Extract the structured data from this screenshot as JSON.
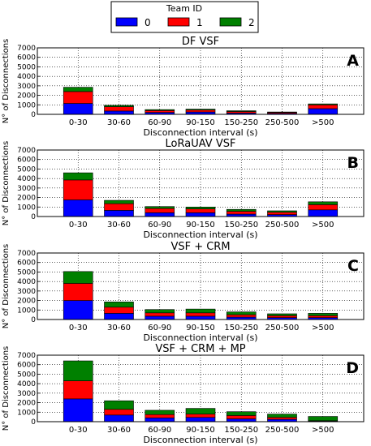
{
  "legend": {
    "title": "Team ID",
    "entries": [
      {
        "label": "0",
        "color": "#0000ff"
      },
      {
        "label": "1",
        "color": "#ff0000"
      },
      {
        "label": "2",
        "color": "#008000"
      }
    ]
  },
  "chart_data": [
    {
      "type": "bar",
      "stacked": true,
      "panel_letter": "A",
      "title": "DF VSF",
      "xlabel": "Disconnection interval (s)",
      "ylabel": "N° of Disconnections",
      "ylim": [
        0,
        7000
      ],
      "yticks": [
        "0",
        "1000",
        "2000",
        "3000",
        "4000",
        "5000",
        "6000",
        "7000"
      ],
      "grid": true,
      "categories": [
        "0-30",
        "30-60",
        "60-90",
        "90-150",
        "150-250",
        "250-500",
        ">500"
      ],
      "series": [
        {
          "name": "0",
          "values": [
            1150,
            350,
            200,
            250,
            130,
            100,
            600
          ]
        },
        {
          "name": "1",
          "values": [
            1250,
            450,
            200,
            200,
            170,
            100,
            400
          ]
        },
        {
          "name": "2",
          "values": [
            450,
            150,
            100,
            100,
            80,
            50,
            100
          ]
        }
      ]
    },
    {
      "type": "bar",
      "stacked": true,
      "panel_letter": "B",
      "title": "LoRaUAV VSF",
      "xlabel": "Disconnection interval (s)",
      "ylabel": "N° of Disconnections",
      "ylim": [
        0,
        7000
      ],
      "yticks": [
        "0",
        "1000",
        "2000",
        "3000",
        "4000",
        "5000",
        "6000",
        "7000"
      ],
      "grid": true,
      "categories": [
        "0-30",
        "30-60",
        "60-90",
        "90-150",
        "150-250",
        "250-500",
        ">500"
      ],
      "series": [
        {
          "name": "0",
          "values": [
            1750,
            650,
            400,
            400,
            250,
            200,
            700
          ]
        },
        {
          "name": "1",
          "values": [
            2100,
            700,
            450,
            400,
            300,
            250,
            550
          ]
        },
        {
          "name": "2",
          "values": [
            750,
            350,
            200,
            200,
            200,
            150,
            300
          ]
        }
      ]
    },
    {
      "type": "bar",
      "stacked": true,
      "panel_letter": "C",
      "title": "VSF + CRM",
      "xlabel": "Disconnection interval (s)",
      "ylabel": "N° of Disconnections",
      "ylim": [
        0,
        7000
      ],
      "yticks": [
        "0",
        "1000",
        "2000",
        "3000",
        "4000",
        "5000",
        "6000",
        "7000"
      ],
      "grid": true,
      "categories": [
        "0-30",
        "30-60",
        "60-90",
        "90-150",
        "150-250",
        "250-500",
        ">500"
      ],
      "series": [
        {
          "name": "0",
          "values": [
            2000,
            650,
            350,
            350,
            250,
            200,
            200
          ]
        },
        {
          "name": "1",
          "values": [
            1800,
            650,
            350,
            350,
            250,
            200,
            200
          ]
        },
        {
          "name": "2",
          "values": [
            1250,
            550,
            350,
            400,
            300,
            200,
            250
          ]
        }
      ]
    },
    {
      "type": "bar",
      "stacked": true,
      "panel_letter": "D",
      "title": "VSF + CRM + MP",
      "xlabel": "Disconnection interval (s)",
      "ylabel": "N° of Disconnections",
      "ylim": [
        0,
        7000
      ],
      "yticks": [
        "0",
        "1000",
        "2000",
        "3000",
        "4000",
        "5000",
        "6000",
        "7000"
      ],
      "grid": true,
      "categories": [
        "0-30",
        "30-60",
        "60-90",
        "90-150",
        "150-250",
        "250-500",
        ">500"
      ],
      "series": [
        {
          "name": "0",
          "values": [
            2400,
            700,
            400,
            450,
            300,
            250,
            50
          ]
        },
        {
          "name": "1",
          "values": [
            1900,
            600,
            350,
            350,
            350,
            200,
            50
          ]
        },
        {
          "name": "2",
          "values": [
            2100,
            900,
            450,
            600,
            400,
            350,
            450
          ]
        }
      ]
    }
  ]
}
